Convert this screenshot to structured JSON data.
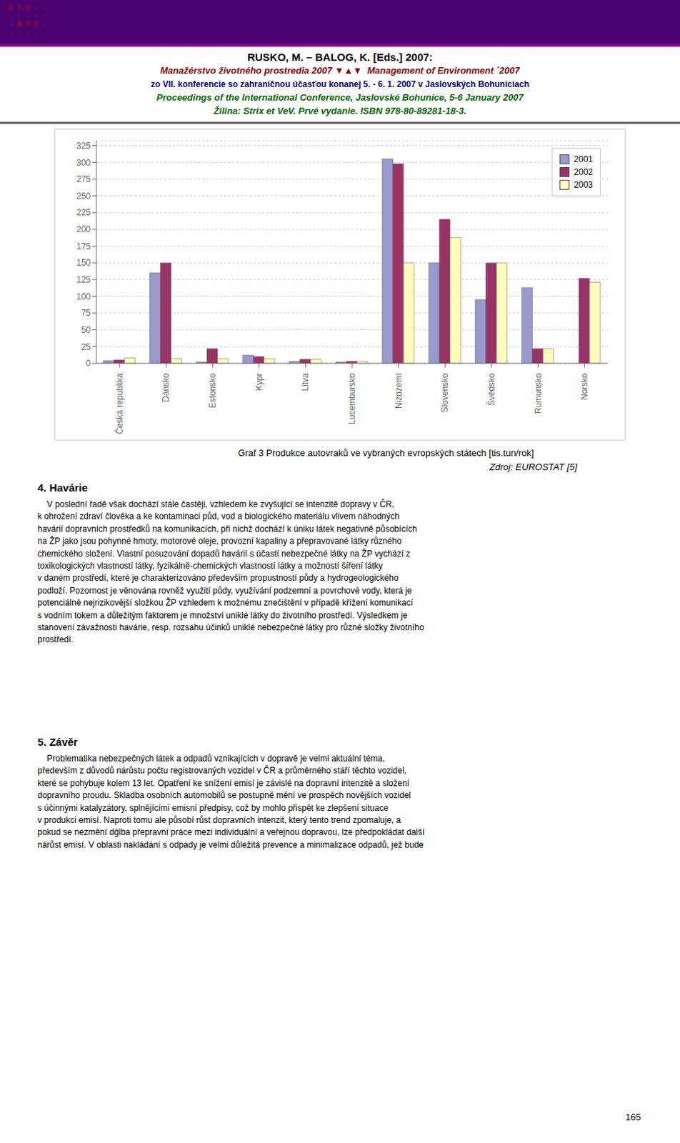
{
  "chart_data": {
    "type": "bar",
    "title": "Graf 3 Produkce autovraků ve vybraných evropských státech [tis.tun/rok]",
    "subtitle": "Zdroj: EUROSTAT [5]",
    "categories": [
      "Česká republika",
      "Dánsko",
      "Estonsko",
      "Kypr",
      "Litva",
      "Lucembursko",
      "Nizozemí",
      "Slovensko",
      "Švédsko",
      "Rumunsko",
      "Norsko"
    ],
    "series": [
      {
        "name": "2001",
        "color": "#9999CC",
        "values": [
          4,
          135,
          2,
          12,
          3,
          2,
          305,
          150,
          95,
          113,
          0
        ]
      },
      {
        "name": "2002",
        "color": "#993366",
        "values": [
          5,
          150,
          22,
          10,
          6,
          3,
          298,
          215,
          150,
          22,
          127
        ]
      },
      {
        "name": "2003",
        "color": "#FFFFBB",
        "values": [
          8,
          7,
          7,
          7,
          6,
          3,
          150,
          188,
          150,
          22,
          121
        ]
      }
    ],
    "ylim": [
      0,
      332
    ],
    "yticks": [
      0,
      25,
      50,
      75,
      100,
      125,
      150,
      175,
      200,
      225,
      250,
      275,
      300,
      325
    ],
    "grid": true,
    "legend": "upper right",
    "annotations": [
      "S T U · ·",
      "· · · · ·",
      "· M T F ·",
      "· · · · ·",
      "RUSKO, M. – BALOG, K. [Eds.] 2007:",
      "Manažérstvo životného prostredia 2007 ▼▲▼  Management of Environment ´2007",
      "zo VII. konferencie so zahraničnou účasťou konanej 5. - 6. 1. 2007 v Jaslovských Bohuniciach",
      "Proceedings of the International Conference, Jaslovské Bohunice, 5-6 January 2007",
      "Žilina: Strix et VeV. Prvé vydanie. ISBN 978-80-89281-18-3.",
      "4. Havárie",
      "    V poslední řadě však dochází stále častěji, vzhledem ke zvyšující se intenzitě dopravy v ČR,\nk ohrožení zdraví člověka a ke kontaminaci půd, vod a biologického materiálu vlivem náhodných\nhavárií dopravních prostředků na komunikacích, při nichž dochází k úniku látek negativně působících\nna ŽP jako jsou pohynné hmoty, motorové oleje, provozní kapaliny a přepravované látky různého\nchemického složení. Vlastní posuzování dopadů havárií s účastí nebezpečné látky na ŽP vychází z\ntoxikologických vlastností látky, fyzikálně-chemických vlastností látky a možností šíření látky\nv daném prostředí, které je charakterizováno především propustností půdy a hydrogeologického\npodloží. Pozornost je věnována rovněž využití půdy, využívání podzemní a povrchové vody, která je\npotenciálně nejrizikovější složkou ŽP vzhledem k možnému znečištění v případě křížení komunikací\ns vodním tokem a důležitým faktorem je množství uniklé látky do životního prostředí. Výsledkem je\nstanovení závažnosti havárie, resp. rozsahu účinků uniklé nebezpečné látky pro různé složky životního\nprostředí.",
      "5. Závěr",
      "    Problematika nebezpečných látek a odpadů vznikajících v dopravě je velmi aktuální téma,\npředevším z důvodů nárůstu počtu registrovaných vozidel v ČR a průměrného stáří těchto vozidel,\nkteré se pohybuje kolem 13 let. Opatření ke snížení emisí je závislé na dopravní intenzitě a složení\ndopravního proudu. Skladba osobních automobilů se postupně mění ve prospěch novějších vozidel\ns účinnými katalyzátory, splnějícími emisní předpisy, což by mohlo přispět ke zlepšení situace\nv produkci emisí. Naproti tomu ale působí růst dopravních intenzit, který tento trend zpomaluje, a\npokud se nezmění dĝlba přepravní práce mezi individuální a veřejnou dopravou, lze předpokládat další\nnárůst emisí. V oblasti nakládání s odpady je velmi důležitá prevence a minimalizace odpadů, jež bude",
      "165"
    ]
  }
}
